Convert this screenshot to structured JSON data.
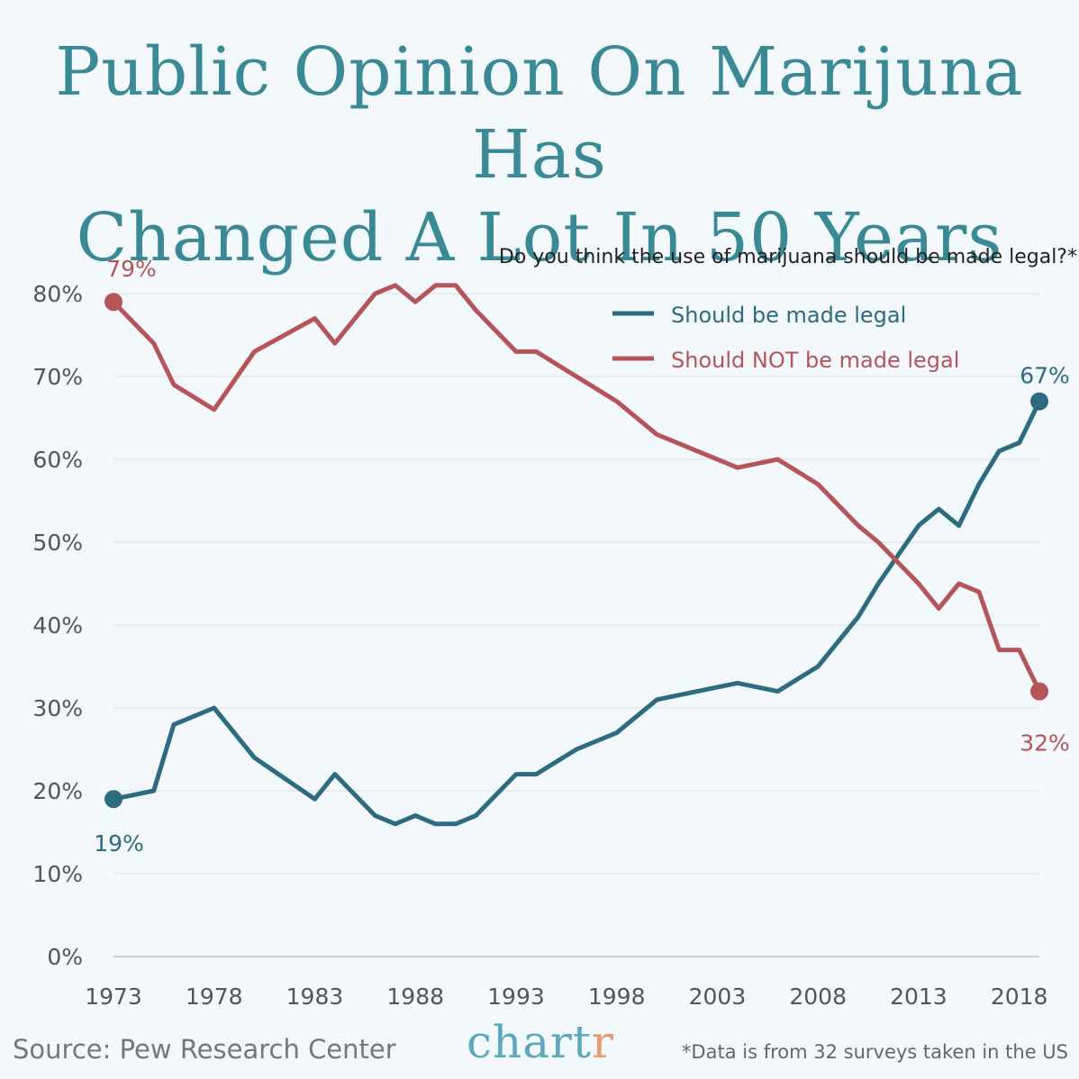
{
  "title_lines": [
    "Public Opinion On Marijuna Has",
    "Changed A Lot In 50 Years"
  ],
  "footer": {
    "source": "Source: Pew Research Center",
    "brand_main": "chart",
    "brand_accent": "r",
    "note": "*Data is from 32 surveys taken in the US"
  },
  "colors": {
    "legal": "#2d6b80",
    "not_legal": "#b5555a",
    "grid": "#e2e8ec",
    "axis_text": "#555555"
  },
  "chart_data": {
    "type": "line",
    "subtitle": "Do you think the use of marijuana should be made legal?*",
    "xlim": [
      1973,
      2019
    ],
    "ylim": [
      0,
      80
    ],
    "x_ticks": [
      1973,
      1978,
      1983,
      1988,
      1993,
      1998,
      2003,
      2008,
      2013,
      2018
    ],
    "y_ticks": [
      0,
      10,
      20,
      30,
      40,
      50,
      60,
      70,
      80
    ],
    "y_tick_labels": [
      "0%",
      "10%",
      "20%",
      "30%",
      "40%",
      "50%",
      "60%",
      "70%",
      "80%"
    ],
    "grid": true,
    "legend_position": "top-right",
    "series": [
      {
        "name": "Should be made legal",
        "color_key": "legal",
        "x": [
          1973,
          1975,
          1976,
          1978,
          1980,
          1983,
          1984,
          1986,
          1987,
          1988,
          1989,
          1990,
          1991,
          1993,
          1994,
          1996,
          1998,
          2000,
          2004,
          2006,
          2008,
          2010,
          2011,
          2013,
          2014,
          2015,
          2016,
          2017,
          2018,
          2019
        ],
        "y": [
          19,
          20,
          28,
          30,
          24,
          19,
          22,
          17,
          16,
          17,
          16,
          16,
          17,
          22,
          22,
          25,
          27,
          31,
          33,
          32,
          35,
          41,
          45,
          52,
          54,
          52,
          57,
          61,
          62,
          67
        ],
        "start_label": "19%",
        "end_label": "67%"
      },
      {
        "name": "Should NOT be made legal",
        "color_key": "not_legal",
        "x": [
          1973,
          1975,
          1976,
          1978,
          1980,
          1983,
          1984,
          1986,
          1987,
          1988,
          1989,
          1990,
          1991,
          1993,
          1994,
          1996,
          1998,
          2000,
          2004,
          2006,
          2008,
          2010,
          2011,
          2013,
          2014,
          2015,
          2016,
          2017,
          2018,
          2019
        ],
        "y": [
          79,
          74,
          69,
          66,
          73,
          77,
          74,
          80,
          81,
          79,
          81,
          81,
          78,
          73,
          73,
          70,
          67,
          63,
          59,
          60,
          57,
          52,
          50,
          45,
          42,
          45,
          44,
          37,
          37,
          32
        ],
        "start_label": "79%",
        "end_label": "32%"
      }
    ]
  }
}
